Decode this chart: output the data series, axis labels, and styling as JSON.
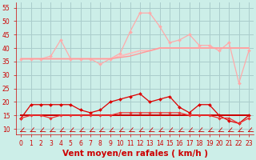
{
  "xlabel": "Vent moyen/en rafales ( km/h )",
  "bg_color": "#cceee8",
  "grid_color": "#aacccc",
  "xlim": [
    -0.5,
    23.5
  ],
  "ylim": [
    8,
    57
  ],
  "yticks": [
    10,
    15,
    20,
    25,
    30,
    35,
    40,
    45,
    50,
    55
  ],
  "xticks": [
    0,
    1,
    2,
    3,
    4,
    5,
    6,
    7,
    8,
    9,
    10,
    11,
    12,
    13,
    14,
    15,
    16,
    17,
    18,
    19,
    20,
    21,
    22,
    23
  ],
  "series": [
    {
      "x": [
        0,
        1,
        2,
        3,
        4,
        5,
        6,
        7,
        8,
        9,
        10,
        11,
        12,
        13,
        14,
        15,
        16,
        17,
        18,
        19,
        20,
        21,
        22,
        23
      ],
      "y": [
        36,
        36,
        36,
        37,
        43,
        36,
        36,
        36,
        34,
        36,
        38,
        46,
        53,
        53,
        48,
        42,
        43,
        45,
        41,
        41,
        39,
        42,
        27,
        39
      ],
      "color": "#ffaaaa",
      "lw": 0.9,
      "marker": "D",
      "ms": 2.0,
      "zorder": 2
    },
    {
      "x": [
        0,
        1,
        2,
        3,
        4,
        5,
        6,
        7,
        8,
        9,
        10,
        11,
        12,
        13,
        14,
        15,
        16,
        17,
        18,
        19,
        20,
        21,
        22,
        23
      ],
      "y": [
        36,
        36,
        36,
        36,
        36,
        36,
        36,
        36,
        36,
        36,
        37,
        38,
        39,
        39,
        40,
        40,
        40,
        40,
        40,
        40,
        40,
        40,
        40,
        40
      ],
      "color": "#ffbbbb",
      "lw": 1.4,
      "marker": null,
      "ms": 0,
      "zorder": 2
    },
    {
      "x": [
        0,
        1,
        2,
        3,
        4,
        5,
        6,
        7,
        8,
        9,
        10,
        11,
        12,
        13,
        14,
        15,
        16,
        17,
        18,
        19,
        20,
        21,
        22,
        23
      ],
      "y": [
        36,
        36,
        36,
        36,
        36,
        36,
        36,
        36,
        36,
        36,
        36.5,
        37,
        38,
        39,
        40,
        40,
        40,
        40,
        40,
        40,
        40,
        40,
        40,
        40
      ],
      "color": "#ff9999",
      "lw": 1.0,
      "marker": null,
      "ms": 0,
      "zorder": 2
    },
    {
      "x": [
        0,
        1,
        2,
        3,
        4,
        5,
        6,
        7,
        8,
        9,
        10,
        11,
        12,
        13,
        14,
        15,
        16,
        17,
        18,
        19,
        20,
        21,
        22,
        23
      ],
      "y": [
        14,
        19,
        19,
        19,
        19,
        19,
        17,
        16,
        17,
        20,
        21,
        22,
        23,
        20,
        21,
        22,
        18,
        16,
        19,
        19,
        15,
        13,
        12,
        15
      ],
      "color": "#dd0000",
      "lw": 0.9,
      "marker": "D",
      "ms": 2.0,
      "zorder": 3
    },
    {
      "x": [
        0,
        1,
        2,
        3,
        4,
        5,
        6,
        7,
        8,
        9,
        10,
        11,
        12,
        13,
        14,
        15,
        16,
        17,
        18,
        19,
        20,
        21,
        22,
        23
      ],
      "y": [
        15,
        15,
        15,
        15,
        15,
        15,
        15,
        15,
        15,
        15,
        15,
        15,
        15,
        15,
        15,
        15,
        15,
        15,
        15,
        15,
        15,
        15,
        15,
        15
      ],
      "color": "#cc0000",
      "lw": 1.4,
      "marker": null,
      "ms": 0,
      "zorder": 3
    },
    {
      "x": [
        0,
        1,
        2,
        3,
        4,
        5,
        6,
        7,
        8,
        9,
        10,
        11,
        12,
        13,
        14,
        15,
        16,
        17,
        18,
        19,
        20,
        21,
        22,
        23
      ],
      "y": [
        14,
        15,
        15,
        14,
        15,
        15,
        15,
        15,
        15,
        15,
        16,
        16,
        16,
        16,
        16,
        16,
        16,
        15,
        15,
        15,
        14,
        14,
        12,
        14
      ],
      "color": "#ee3333",
      "lw": 0.9,
      "marker": "D",
      "ms": 1.8,
      "zorder": 3
    }
  ],
  "arrow_color": "#cc0000",
  "font_color": "#cc0000",
  "tick_fontsize": 5.5,
  "xlabel_fontsize": 7.5
}
